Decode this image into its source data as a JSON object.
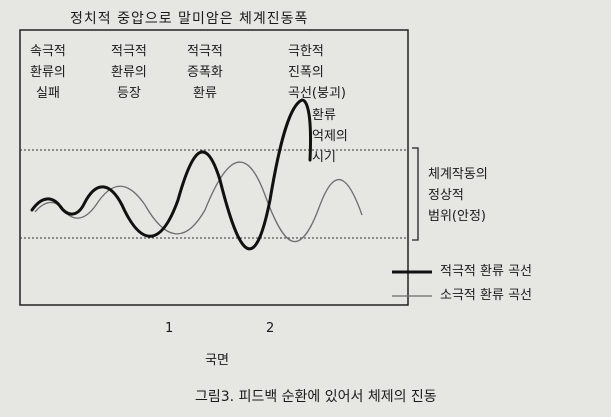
{
  "title": "정치적 중압으로 말미암은 체계진동폭",
  "stage_labels": [
    [
      "속극적",
      "환류의",
      "실패"
    ],
    [
      "적극적",
      "환류의",
      "등장"
    ],
    [
      "적극적",
      "증폭화",
      "환류"
    ],
    [
      "극한적",
      "진폭의",
      "곡선(붕괴)"
    ]
  ],
  "suppression_label": [
    "환류",
    "억제의",
    "시기"
  ],
  "range_label": [
    "체계작동의",
    "정상적",
    "범위(안정)"
  ],
  "legend": [
    {
      "label": "적극적 환류 곡선",
      "style": "thick"
    },
    {
      "label": "소극적 환류 곡선",
      "style": "thin"
    }
  ],
  "phase_numbers": [
    "1",
    "2"
  ],
  "x_axis_label": "국면",
  "caption": "그림3. 피드백 순환에 있어서 체제의 진동",
  "colors": {
    "thick": "#111111",
    "thin": "#777777",
    "frame": "#222222"
  }
}
